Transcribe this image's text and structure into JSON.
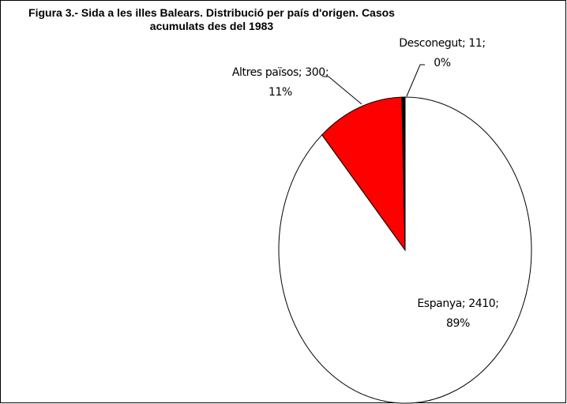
{
  "chart_data": {
    "type": "pie",
    "title": "Figura 3.- Sida a les illes Balears. Distribució per país d'origen. Casos acumulats des del 1983",
    "categories": [
      "Espanya",
      "Altres països",
      "Desconegut"
    ],
    "values": [
      2410,
      300,
      11
    ],
    "value_labels": [
      "Espanya; 2410; 89%",
      "Altres països; 300; 11%",
      "Desconegut; 11; 0%"
    ],
    "colors": [
      "#ffffff",
      "#ff0000",
      "#000000"
    ]
  }
}
